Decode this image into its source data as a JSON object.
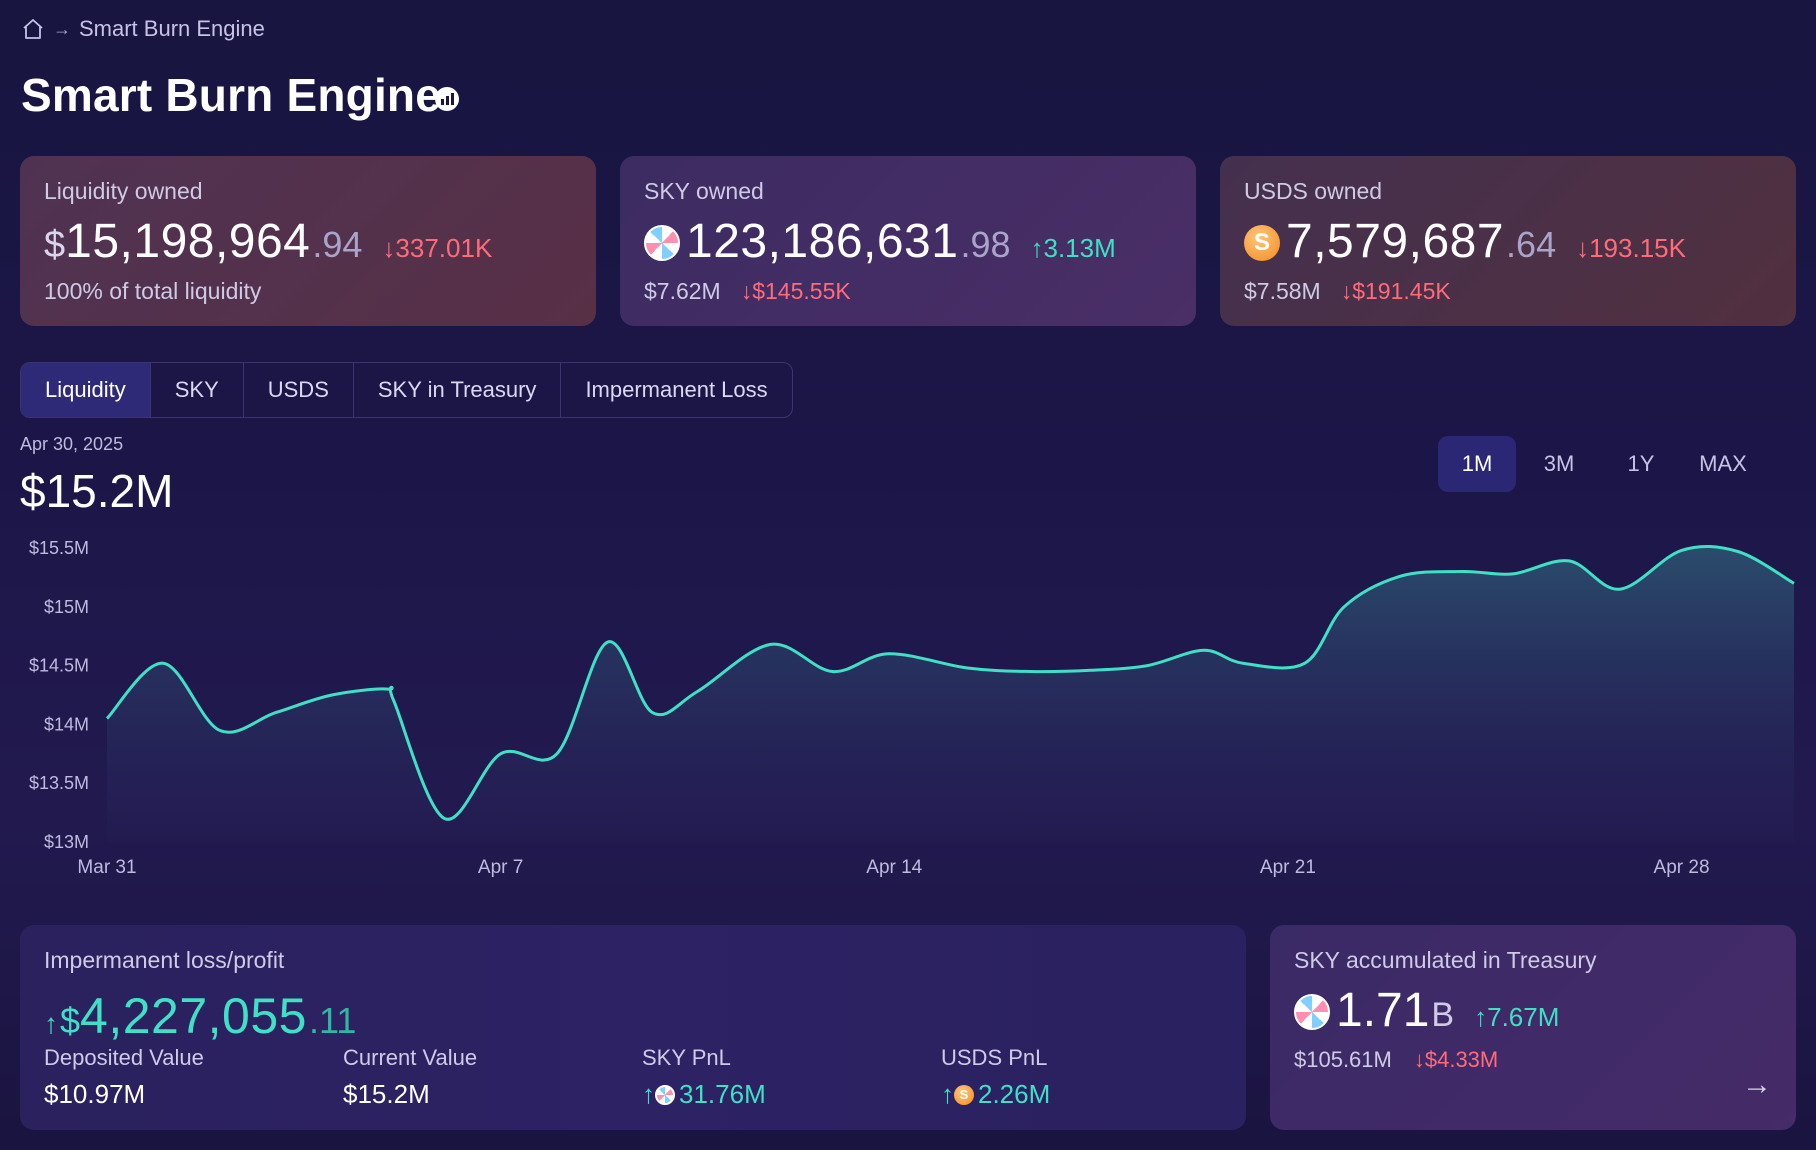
{
  "breadcrumb": {
    "home_icon": "home-icon",
    "separator": "→",
    "current": "Smart Burn Engine"
  },
  "page": {
    "title": "Smart Burn Engine",
    "title_icon": "chart-badge-icon"
  },
  "cards": {
    "liquidity": {
      "label": "Liquidity owned",
      "dollar": "$",
      "main": "15,198,964",
      "cents": ".94",
      "delta": "↓337.01K",
      "sub": "100% of total liquidity"
    },
    "sky": {
      "label": "SKY owned",
      "main": "123,186,631",
      "cents": ".98",
      "delta": "↑3.13M",
      "sub_value": "$7.62M",
      "sub_delta": "↓$145.55K",
      "icon": "sky-token-icon"
    },
    "usds": {
      "label": "USDS owned",
      "main": "7,579,687",
      "cents": ".64",
      "delta": "↓193.15K",
      "sub_value": "$7.58M",
      "sub_delta": "↓$191.45K",
      "icon": "usds-token-icon"
    }
  },
  "tabs": [
    {
      "label": "Liquidity",
      "active": true
    },
    {
      "label": "SKY",
      "active": false
    },
    {
      "label": "USDS",
      "active": false
    },
    {
      "label": "SKY in Treasury",
      "active": false
    },
    {
      "label": "Impermanent Loss",
      "active": false
    }
  ],
  "chart_header": {
    "date": "Apr 30, 2025",
    "value": "$15.2M"
  },
  "ranges": [
    {
      "label": "1M",
      "active": true
    },
    {
      "label": "3M",
      "active": false
    },
    {
      "label": "1Y",
      "active": false
    },
    {
      "label": "MAX",
      "active": false
    }
  ],
  "chart_data": {
    "type": "area",
    "title": "",
    "xlabel": "",
    "ylabel": "",
    "ylim": [
      13000000,
      15500000
    ],
    "yticks": [
      13000000,
      13500000,
      14000000,
      14500000,
      15000000,
      15500000
    ],
    "ytick_labels": [
      "$13M",
      "$13.5M",
      "$14M",
      "$14.5M",
      "$15M",
      "$15.5M"
    ],
    "xlim": [
      0,
      30
    ],
    "xticks": [
      0,
      7,
      14,
      21,
      28
    ],
    "xtick_labels": [
      "Mar 31",
      "Apr 7",
      "Apr 14",
      "Apr 21",
      "Apr 28"
    ],
    "x": [
      0,
      1,
      2,
      3,
      4,
      5,
      5.1,
      6,
      7,
      8,
      8.9,
      9.7,
      10.5,
      11.8,
      12.9,
      13.9,
      15.3,
      16.4,
      17.5,
      18.5,
      19.5,
      20.2,
      21.3,
      22,
      23,
      24.1,
      25,
      26,
      26.9,
      28,
      29,
      30
    ],
    "values": [
      14050000,
      14520000,
      13950000,
      14100000,
      14250000,
      14300000,
      14200000,
      13200000,
      13750000,
      13750000,
      14700000,
      14100000,
      14280000,
      14680000,
      14450000,
      14600000,
      14480000,
      14450000,
      14460000,
      14500000,
      14630000,
      14520000,
      14520000,
      15000000,
      15260000,
      15300000,
      15280000,
      15390000,
      15150000,
      15480000,
      15470000,
      15200000
    ],
    "line_color": "#3fe0c5",
    "fill_color": "#2f5f78",
    "grid": false
  },
  "impermanent": {
    "label": "Impermanent loss/profit",
    "arrow": "↑",
    "dollar": "$",
    "main": "4,227,055",
    "cents": ".11",
    "stats": [
      {
        "key": "Deposited Value",
        "value": "$10.97M"
      },
      {
        "key": "Current Value",
        "value": "$15.2M"
      },
      {
        "key": "SKY PnL",
        "value": "31.76M",
        "prefix": "↑"
      },
      {
        "key": "USDS PnL",
        "value": "2.26M",
        "prefix": "↑"
      }
    ]
  },
  "accumulated": {
    "label": "SKY accumulated in Treasury",
    "main": "1.71",
    "unit": "B",
    "delta": "↑7.67M",
    "sub_value": "$105.61M",
    "sub_delta": "↓$4.33M",
    "arrow": "→"
  },
  "colors": {
    "accent_up": "#3fe0c5",
    "accent_down": "#ff6b7a",
    "background": "#1b1540"
  }
}
